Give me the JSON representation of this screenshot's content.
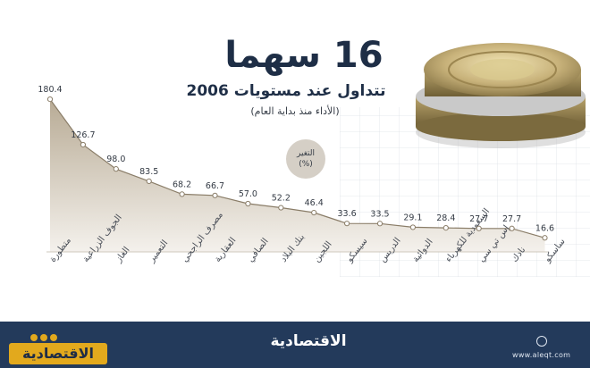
{
  "header": {
    "title": "16 سهما",
    "subtitle": "تتداول عند مستويات 2006",
    "note": "(الأداء منذ بداية العام)"
  },
  "badge": {
    "label": "التغير",
    "unit": "(%)"
  },
  "chart_data": {
    "type": "area",
    "categories": [
      "متطورة",
      "الجوف الزراعية",
      "الغاز",
      "التعمير",
      "مصرف الراجحي",
      "العقارية",
      "الصافي",
      "بنك البلاد",
      "اللجين",
      "سيسكو",
      "الدريس",
      "الدوائية",
      "السعودية للكهرباء",
      "إس تي سي",
      "نادك",
      "ساسكو"
    ],
    "values": [
      180.4,
      126.7,
      98.0,
      83.5,
      68.2,
      66.7,
      57.0,
      52.2,
      46.4,
      33.6,
      33.5,
      29.1,
      28.4,
      27.7,
      27.7,
      16.6
    ],
    "value_labels": [
      "180.4",
      "126.7",
      "98.0",
      "83.5",
      "68.2",
      "66.7",
      "57.0",
      "52.2",
      "46.4",
      "33.6",
      "33.5",
      "29.1",
      "28.4",
      "27.7",
      "27.7",
      "16.6"
    ],
    "title": "16 سهما",
    "ylim": [
      0,
      190
    ],
    "grid": false,
    "colors": {
      "fill_top": "#b8ab95",
      "fill_bottom": "#f4f1ec",
      "line": "#8a7d68",
      "marker": "#ffffff"
    }
  },
  "footer": {
    "url": "www.aleqt.com",
    "logo_center": "الاقتصادية",
    "logo_left": "الاقتصادية",
    "icons": [
      "globe-icon",
      "twitter-icon",
      "facebook-icon",
      "instagram-icon"
    ]
  }
}
